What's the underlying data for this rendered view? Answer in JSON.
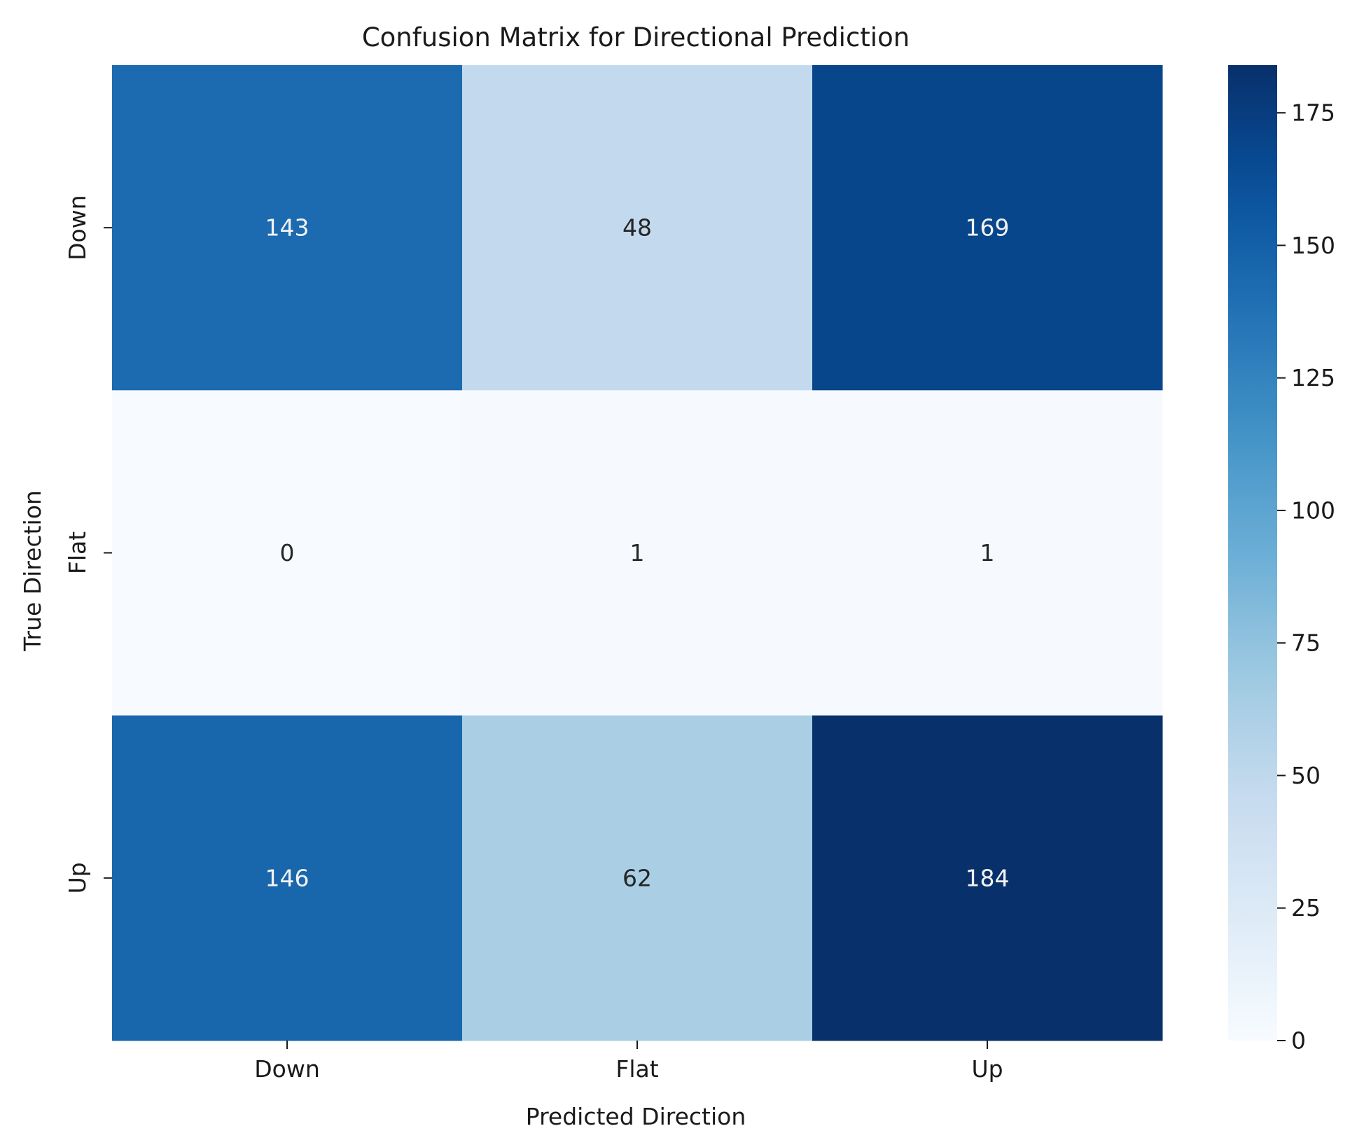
{
  "chart_data": {
    "type": "heatmap",
    "title": "Confusion Matrix for Directional Prediction",
    "xlabel": "Predicted Direction",
    "ylabel": "True Direction",
    "x_categories": [
      "Down",
      "Flat",
      "Up"
    ],
    "y_categories": [
      "Down",
      "Flat",
      "Up"
    ],
    "values": [
      [
        143,
        48,
        169
      ],
      [
        0,
        1,
        1
      ],
      [
        146,
        62,
        184
      ]
    ],
    "colormap": "Blues",
    "colorbar": {
      "range": [
        0,
        184
      ],
      "ticks": [
        0,
        25,
        50,
        75,
        100,
        125,
        150,
        175
      ]
    },
    "colors": {
      "text_dark": "#262626",
      "text_light": "#f2f2f2",
      "axis": "#1a1a1a"
    }
  }
}
